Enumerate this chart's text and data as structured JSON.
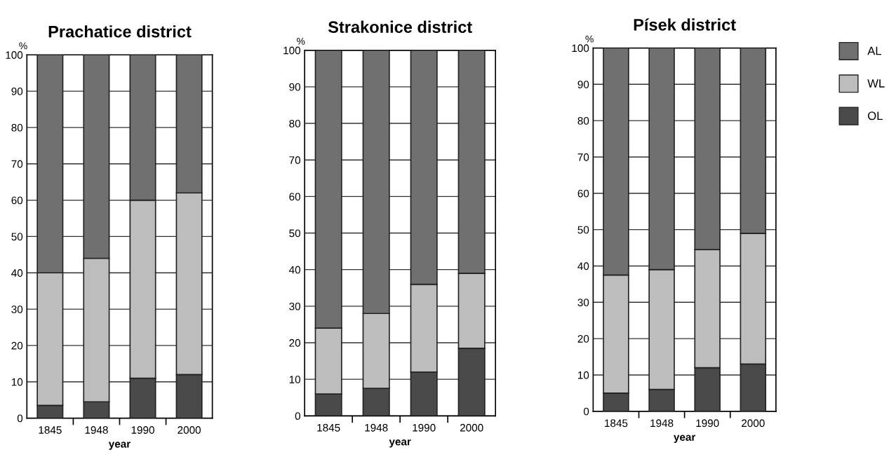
{
  "chart_data": [
    {
      "type": "bar",
      "title": "Prachatice district",
      "xlabel": "year",
      "ylabel": "%",
      "categories": [
        "1845",
        "1948",
        "1990",
        "2000"
      ],
      "stacked": true,
      "ylim": [
        0,
        100
      ],
      "yticks": [
        0,
        10,
        20,
        30,
        40,
        50,
        60,
        70,
        80,
        90,
        100
      ],
      "grid": "y",
      "legend": "right",
      "series": [
        {
          "name": "OL",
          "color": "#4a4a4a",
          "values": [
            3.5,
            4.5,
            11,
            12
          ]
        },
        {
          "name": "WL",
          "color": "#bdbdbd",
          "values": [
            36.5,
            39.5,
            49,
            50
          ]
        },
        {
          "name": "AL",
          "color": "#707070",
          "values": [
            60,
            56,
            40,
            38
          ]
        }
      ]
    },
    {
      "type": "bar",
      "title": "Strakonice district",
      "xlabel": "year",
      "ylabel": "%",
      "categories": [
        "1845",
        "1948",
        "1990",
        "2000"
      ],
      "stacked": true,
      "ylim": [
        0,
        100
      ],
      "yticks": [
        0,
        10,
        20,
        30,
        40,
        50,
        60,
        70,
        80,
        90,
        100
      ],
      "grid": "y",
      "series": [
        {
          "color": "#4a4a4a",
          "values": [
            6,
            7.5,
            12,
            18.5
          ]
        },
        {
          "color": "#bdbdbd",
          "values": [
            18,
            20.5,
            24,
            20.5
          ]
        },
        {
          "color": "#707070",
          "values": [
            76,
            72,
            64,
            61
          ]
        }
      ]
    },
    {
      "type": "bar",
      "title": "Písek district",
      "xlabel": "year",
      "ylabel": "%",
      "categories": [
        "1845",
        "1948",
        "1990",
        "2000"
      ],
      "stacked": true,
      "ylim": [
        0,
        100
      ],
      "yticks": [
        0,
        10,
        20,
        30,
        40,
        50,
        60,
        70,
        80,
        90,
        100
      ],
      "grid": "y",
      "series": [
        {
          "color": "#4a4a4a",
          "values": [
            5,
            6,
            12,
            13
          ]
        },
        {
          "color": "#bdbdbd",
          "values": [
            32.5,
            33,
            32.5,
            36
          ]
        },
        {
          "color": "#707070",
          "values": [
            62.5,
            61,
            55.5,
            51
          ]
        }
      ]
    }
  ]
}
